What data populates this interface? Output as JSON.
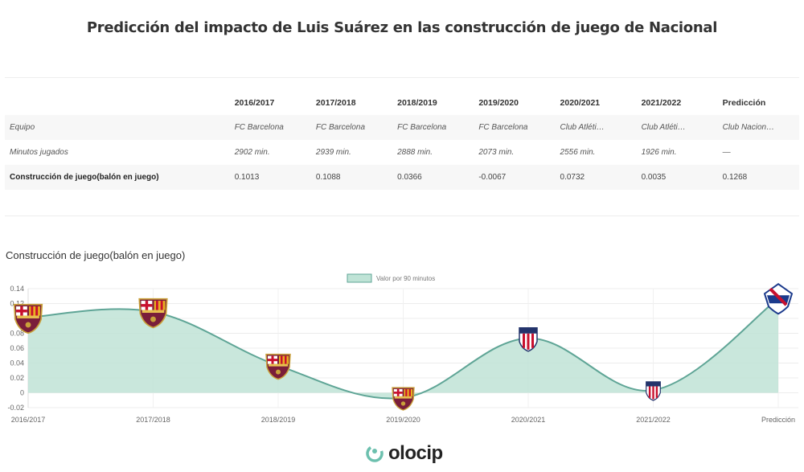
{
  "title": "Predicción del impacto de Luis Suárez en las construcción de juego de Nacional",
  "table": {
    "columns": [
      "",
      "2016/2017",
      "2017/2018",
      "2018/2019",
      "2019/2020",
      "2020/2021",
      "2021/2022",
      "Predicción"
    ],
    "rows": [
      {
        "label": "Equipo",
        "cells": [
          "FC Barcelona",
          "FC Barcelona",
          "FC Barcelona",
          "FC Barcelona",
          "Club Atléti…",
          "Club Atléti…",
          "Club Nacion…"
        ]
      },
      {
        "label": "Minutos jugados",
        "cells": [
          "2902 min.",
          "2939 min.",
          "2888 min.",
          "2073 min.",
          "2556 min.",
          "1926 min.",
          "—"
        ]
      },
      {
        "label": "Construcción de juego(balón en juego)",
        "cells": [
          "0.1013",
          "0.1088",
          "0.0366",
          "-0.0067",
          "0.0732",
          "0.0035",
          "0.1268"
        ]
      }
    ]
  },
  "chart_data": {
    "type": "area",
    "title": "Construcción de juego(balón en juego)",
    "categories": [
      "2016/2017",
      "2017/2018",
      "2018/2019",
      "2019/2020",
      "2020/2021",
      "2021/2022",
      "Predicción"
    ],
    "series": [
      {
        "name": "Valor por 90 minutos",
        "values": [
          0.1013,
          0.1088,
          0.0366,
          -0.0067,
          0.0732,
          0.0035,
          0.1268
        ]
      }
    ],
    "markers": [
      "fc-barcelona-crest",
      "fc-barcelona-crest",
      "fc-barcelona-crest",
      "fc-barcelona-crest",
      "atletico-madrid-crest",
      "atletico-madrid-crest",
      "club-nacional-crest"
    ],
    "ylim": [
      -0.02,
      0.14
    ],
    "yticks": [
      "0.14",
      "0.12",
      "0.1",
      "0.08",
      "0.06",
      "0.04",
      "0.02",
      "0",
      "-0.02"
    ],
    "grid": true,
    "legend_position": "top-center",
    "colors": {
      "fill": "#bfe3d6",
      "line": "#5fa596"
    }
  },
  "brand": {
    "name": "olocip",
    "color": "#6cc0ae"
  }
}
